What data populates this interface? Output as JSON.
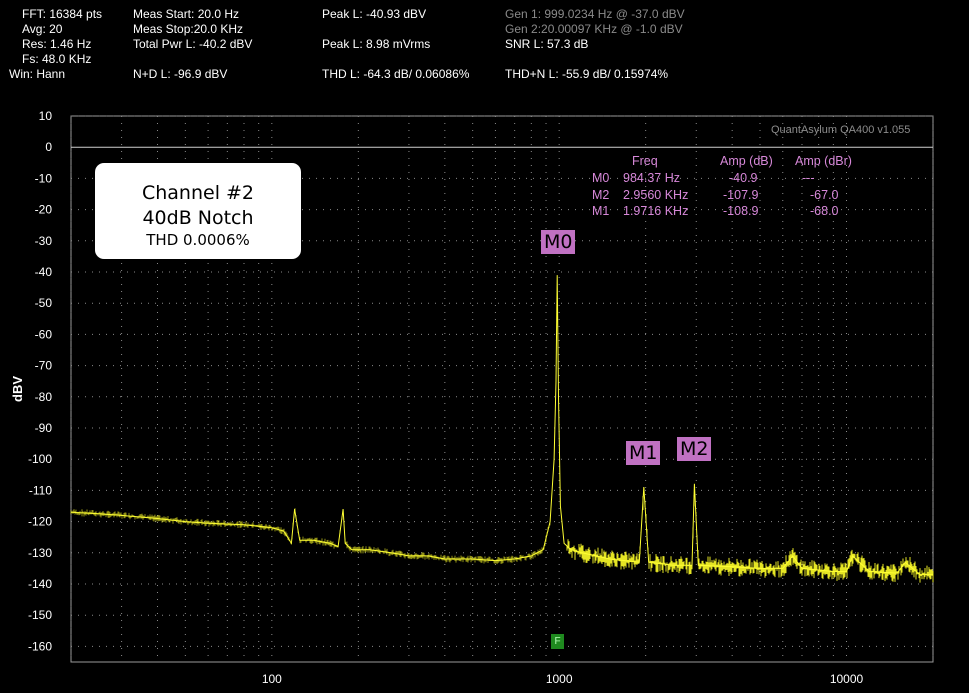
{
  "header": {
    "col1": [
      "FFT: 16384 pts",
      "Avg: 20",
      "Res: 1.46 Hz",
      "Fs: 48.0 KHz",
      "Win: Hann"
    ],
    "col2": [
      "Meas Start: 20.0 Hz",
      "Meas Stop:20.0 KHz",
      "Total Pwr L: -40.2 dBV",
      "",
      "N+D L: -96.9 dBV"
    ],
    "col3": [
      "Peak L: -40.93 dBV",
      "",
      "Peak L: 8.98 mVrms",
      "",
      "THD L: -64.3 dB/ 0.06086%"
    ],
    "col4_gray": [
      "Gen 1: 999.0234 Hz @ -37.0  dBV",
      "Gen 2:20.00097 KHz @ -1.0  dBV"
    ],
    "col4": [
      "SNR L: 57.3 dB",
      "",
      "THD+N L: -55.9 dB/ 0.15974%"
    ]
  },
  "watermark": "QuantAsylum QA400 v1.055",
  "note": {
    "line1": "Channel #2",
    "line2": "40dB Notch",
    "line3": "THD 0.0006%"
  },
  "marker_table": {
    "headers": [
      "Freq",
      "Amp (dB)",
      "Amp (dBr)"
    ],
    "rows": [
      {
        "id": "M0",
        "freq": "984.37 Hz",
        "amp": "-40.9",
        "ampr": "---"
      },
      {
        "id": "M2",
        "freq": "2.9560 KHz",
        "amp": "-107.9",
        "ampr": "-67.0"
      },
      {
        "id": "M1",
        "freq": "1.9716 KHz",
        "amp": "-108.9",
        "ampr": "-68.0"
      }
    ]
  },
  "marker_labels": {
    "m0": "M0",
    "m1": "M1",
    "m2": "M2"
  },
  "f_marker": "F",
  "chart_data": {
    "type": "line",
    "title": "",
    "xlabel": "",
    "ylabel": "dBV",
    "xscale": "log",
    "xlim": [
      20,
      20000
    ],
    "ylim": [
      -165,
      10
    ],
    "xticks": [
      100,
      1000,
      10000
    ],
    "xtick_labels": [
      "100",
      "1000",
      "10000"
    ],
    "yticks": [
      10,
      0,
      -10,
      -20,
      -30,
      -40,
      -50,
      -60,
      -70,
      -80,
      -90,
      -100,
      -110,
      -120,
      -130,
      -140,
      -150,
      -160
    ],
    "grid": true,
    "series": [
      {
        "name": "",
        "color": "#ffff33",
        "x": [
          20,
          25,
          30,
          40,
          50,
          60,
          80,
          100,
          110,
          117,
          120,
          125,
          140,
          160,
          170,
          177,
          180,
          190,
          220,
          260,
          300,
          350,
          400,
          500,
          600,
          700,
          800,
          880,
          930,
          960,
          975,
          984,
          995,
          1010,
          1040,
          1100,
          1200,
          1500,
          1900,
          1971,
          2050,
          2500,
          2900,
          2956,
          3050,
          4000,
          5000,
          6000,
          6500,
          7000,
          9000,
          10000,
          10500,
          12000,
          15000,
          16000,
          18000,
          20000
        ],
        "y": [
          -117,
          -117.5,
          -118,
          -119,
          -120,
          -120.5,
          -121,
          -122,
          -123,
          -127,
          -116,
          -126,
          -126,
          -127,
          -128,
          -116,
          -127,
          -129,
          -129,
          -130,
          -131,
          -131,
          -132,
          -132,
          -132.5,
          -132,
          -131,
          -129,
          -120,
          -100,
          -75,
          -41,
          -80,
          -115,
          -127,
          -129,
          -130,
          -132,
          -133,
          -108.9,
          -133,
          -134,
          -134,
          -107.9,
          -134,
          -134.5,
          -135,
          -135,
          -131,
          -135,
          -136,
          -136,
          -131,
          -136,
          -136.5,
          -133,
          -137,
          -137
        ]
      }
    ],
    "markers": [
      {
        "id": "M0",
        "x": 984.37,
        "y": -40.9
      },
      {
        "id": "M1",
        "x": 1971.6,
        "y": -108.9
      },
      {
        "id": "M2",
        "x": 2956,
        "y": -107.9
      }
    ]
  }
}
